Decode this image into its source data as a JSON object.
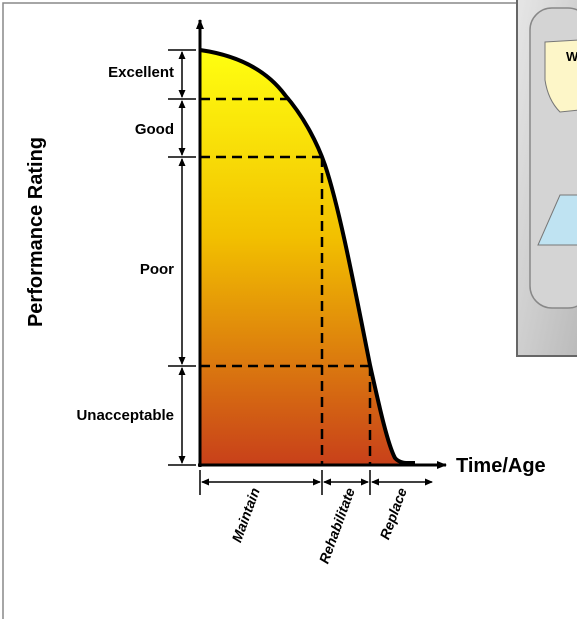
{
  "y_axis_label": "Performance Rating",
  "levels": [
    "Excellent",
    "Good",
    "Poor",
    "Unacceptable"
  ],
  "x_axis_label": "Time/Age",
  "phases": [
    "Maintain",
    "Rehabilitate",
    "Replace"
  ],
  "inset": {
    "label": "W"
  }
}
